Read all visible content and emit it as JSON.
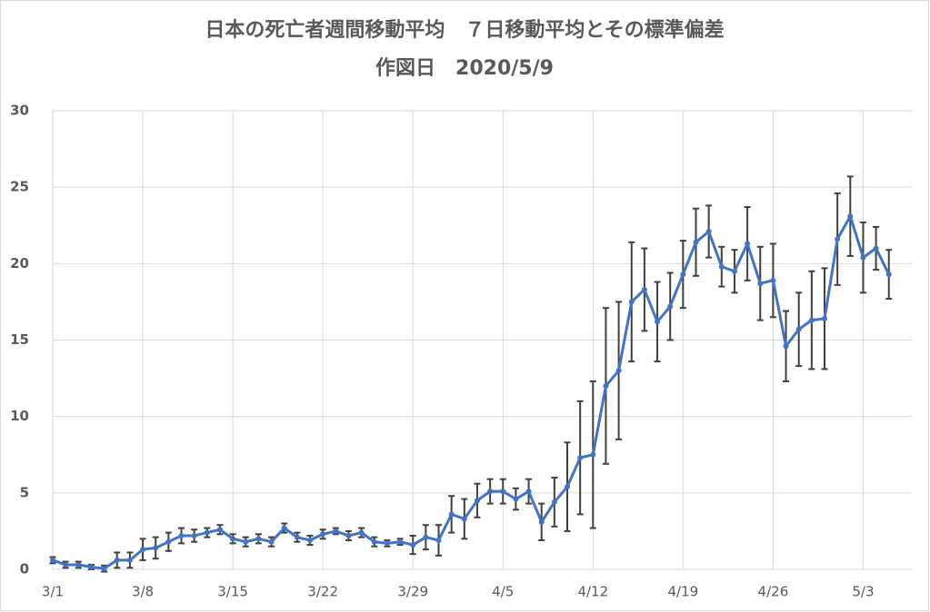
{
  "chart_data": {
    "type": "line",
    "title": "日本の死亡者週間移動平均　７日移動平均とその標準偏差",
    "subtitle": "作図日　2020/5/9",
    "categories": [
      "3/1",
      null,
      null,
      null,
      null,
      null,
      null,
      "3/8",
      null,
      null,
      null,
      null,
      null,
      null,
      "3/15",
      null,
      null,
      null,
      null,
      null,
      null,
      "3/22",
      null,
      null,
      null,
      null,
      null,
      null,
      "3/29",
      null,
      null,
      null,
      null,
      null,
      null,
      "4/5",
      null,
      null,
      null,
      null,
      null,
      null,
      "4/12",
      null,
      null,
      null,
      null,
      null,
      null,
      "4/19",
      null,
      null,
      null,
      null,
      null,
      null,
      "4/26",
      null,
      null,
      null,
      null,
      null,
      null,
      "5/3",
      null,
      null
    ],
    "series": [
      {
        "color": "#4472c4",
        "error_color": "#404040",
        "values": [
          0.6,
          0.3,
          0.3,
          0.15,
          0.05,
          0.6,
          0.6,
          1.3,
          1.4,
          1.8,
          2.2,
          2.2,
          2.4,
          2.6,
          2.0,
          1.8,
          2.0,
          1.8,
          2.7,
          2.1,
          1.9,
          2.3,
          2.5,
          2.2,
          2.4,
          1.8,
          1.7,
          1.8,
          1.6,
          2.1,
          1.9,
          3.6,
          3.3,
          4.5,
          5.1,
          5.1,
          4.6,
          5.1,
          3.1,
          4.4,
          5.4,
          7.3,
          7.5,
          12.0,
          13.0,
          17.5,
          18.3,
          16.2,
          17.2,
          19.3,
          21.4,
          22.1,
          19.8,
          19.5,
          21.3,
          18.7,
          18.9,
          14.6,
          15.7,
          16.3,
          16.4,
          21.6,
          23.1,
          20.4,
          21.0,
          19.3
        ],
        "errors": [
          0.2,
          0.2,
          0.2,
          0.15,
          0.2,
          0.5,
          0.5,
          0.7,
          0.7,
          0.6,
          0.5,
          0.4,
          0.3,
          0.3,
          0.3,
          0.3,
          0.3,
          0.3,
          0.3,
          0.3,
          0.3,
          0.3,
          0.2,
          0.3,
          0.3,
          0.3,
          0.2,
          0.2,
          0.6,
          0.8,
          1.0,
          1.2,
          1.3,
          1.1,
          0.8,
          0.8,
          0.7,
          0.8,
          1.2,
          1.6,
          2.9,
          3.7,
          4.8,
          5.1,
          4.5,
          3.9,
          2.7,
          2.6,
          2.2,
          2.2,
          2.2,
          1.7,
          1.3,
          1.4,
          2.4,
          2.4,
          2.4,
          2.3,
          2.4,
          3.2,
          3.3,
          3.0,
          2.6,
          2.3,
          1.4,
          1.6
        ]
      }
    ],
    "ylim": [
      0,
      30
    ],
    "yticks": [
      0,
      5,
      10,
      15,
      20,
      25,
      30
    ],
    "grid": true
  }
}
